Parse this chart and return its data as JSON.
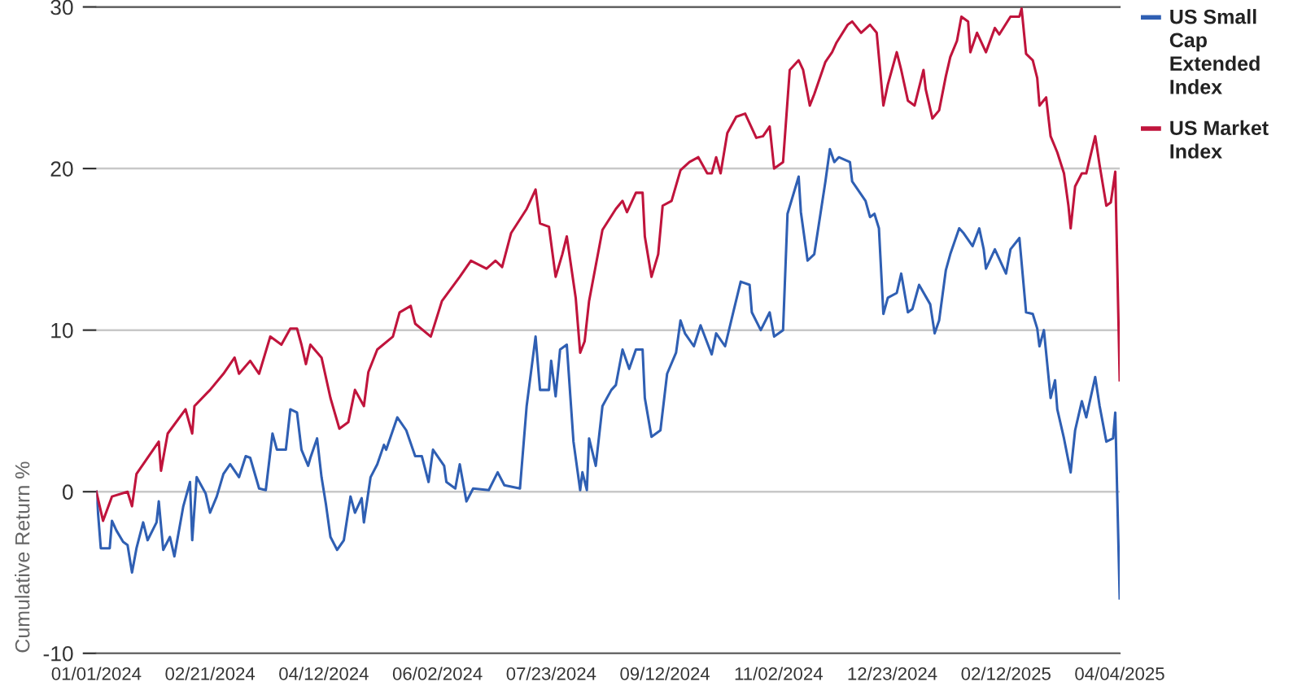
{
  "chart_data": {
    "type": "line",
    "ylabel": "Cumulative Return %",
    "xlim": [
      "2024-01-01",
      "2025-04-04"
    ],
    "xticks": [
      {
        "value": "2024-01-01",
        "label": "01/01/2024"
      },
      {
        "value": "2024-02-21",
        "label": "02/21/2024"
      },
      {
        "value": "2024-04-12",
        "label": "04/12/2024"
      },
      {
        "value": "2024-06-02",
        "label": "06/02/2024"
      },
      {
        "value": "2024-07-23",
        "label": "07/23/2024"
      },
      {
        "value": "2024-09-12",
        "label": "09/12/2024"
      },
      {
        "value": "2024-11-02",
        "label": "11/02/2024"
      },
      {
        "value": "2024-12-23",
        "label": "12/23/2024"
      },
      {
        "value": "2025-02-12",
        "label": "02/12/2025"
      },
      {
        "value": "2025-04-04",
        "label": "04/04/2025"
      }
    ],
    "ylim": [
      -10,
      30
    ],
    "yticks": [
      -10,
      0,
      10,
      20,
      30
    ],
    "grid": "y",
    "legend": "top right",
    "marker": "none",
    "line_style": "solid",
    "series": [
      {
        "name": "US Small Cap Extended Index",
        "color": "#2f5fb3",
        "x": [
          "2024-01-01",
          "2024-01-03",
          "2024-01-07",
          "2024-01-08",
          "2024-01-10",
          "2024-01-13",
          "2024-01-15",
          "2024-01-17",
          "2024-01-19",
          "2024-01-22",
          "2024-01-24",
          "2024-01-28",
          "2024-01-29",
          "2024-01-31",
          "2024-02-03",
          "2024-02-05",
          "2024-02-09",
          "2024-02-12",
          "2024-02-13",
          "2024-02-15",
          "2024-02-19",
          "2024-02-21",
          "2024-02-24",
          "2024-02-27",
          "2024-03-01",
          "2024-03-05",
          "2024-03-08",
          "2024-03-10",
          "2024-03-14",
          "2024-03-17",
          "2024-03-20",
          "2024-03-22",
          "2024-03-26",
          "2024-03-28",
          "2024-03-31",
          "2024-04-02",
          "2024-04-05",
          "2024-04-06",
          "2024-04-09",
          "2024-04-11",
          "2024-04-13",
          "2024-04-15",
          "2024-04-18",
          "2024-04-21",
          "2024-04-24",
          "2024-04-26",
          "2024-04-29",
          "2024-04-30",
          "2024-05-03",
          "2024-05-06",
          "2024-05-09",
          "2024-05-10",
          "2024-05-15",
          "2024-05-19",
          "2024-05-23",
          "2024-05-26",
          "2024-05-29",
          "2024-05-31",
          "2024-06-05",
          "2024-06-06",
          "2024-06-10",
          "2024-06-12",
          "2024-06-15",
          "2024-06-18",
          "2024-06-25",
          "2024-06-29",
          "2024-07-02",
          "2024-07-09",
          "2024-07-12",
          "2024-07-16",
          "2024-07-18",
          "2024-07-22",
          "2024-07-23",
          "2024-07-25",
          "2024-07-27",
          "2024-07-30",
          "2024-08-02",
          "2024-08-05",
          "2024-08-06",
          "2024-08-08",
          "2024-08-09",
          "2024-08-12",
          "2024-08-15",
          "2024-08-19",
          "2024-08-21",
          "2024-08-24",
          "2024-08-27",
          "2024-08-30",
          "2024-09-02",
          "2024-09-03",
          "2024-09-06",
          "2024-09-10",
          "2024-09-13",
          "2024-09-17",
          "2024-09-19",
          "2024-09-21",
          "2024-09-25",
          "2024-09-28",
          "2024-10-03",
          "2024-10-05",
          "2024-10-09",
          "2024-10-13",
          "2024-10-16",
          "2024-10-20",
          "2024-10-21",
          "2024-10-25",
          "2024-10-29",
          "2024-10-31",
          "2024-11-04",
          "2024-11-06",
          "2024-11-11",
          "2024-11-12",
          "2024-11-15",
          "2024-11-18",
          "2024-11-23",
          "2024-11-25",
          "2024-11-27",
          "2024-11-29",
          "2024-12-04",
          "2024-12-05",
          "2024-12-09",
          "2024-12-11",
          "2024-12-13",
          "2024-12-15",
          "2024-12-17",
          "2024-12-19",
          "2024-12-21",
          "2024-12-25",
          "2024-12-27",
          "2024-12-30",
          "2025-01-01",
          "2025-01-04",
          "2025-01-09",
          "2025-01-11",
          "2025-01-13",
          "2025-01-16",
          "2025-01-18",
          "2025-01-22",
          "2025-01-24",
          "2025-01-28",
          "2025-01-31",
          "2025-02-02",
          "2025-02-03",
          "2025-02-07",
          "2025-02-12",
          "2025-02-14",
          "2025-02-18",
          "2025-02-21",
          "2025-02-24",
          "2025-02-26",
          "2025-02-27",
          "2025-03-01",
          "2025-03-04",
          "2025-03-06",
          "2025-03-07",
          "2025-03-10",
          "2025-03-13",
          "2025-03-15",
          "2025-03-18",
          "2025-03-20",
          "2025-03-24",
          "2025-03-26",
          "2025-03-29",
          "2025-04-01",
          "2025-04-02",
          "2025-04-04"
        ],
        "values": [
          0,
          -3.5,
          -3.5,
          -1.8,
          -2.4,
          -3.1,
          -3.3,
          -5.0,
          -3.5,
          -1.9,
          -3.0,
          -1.9,
          -0.6,
          -3.6,
          -2.8,
          -4.0,
          -0.9,
          0.6,
          -3.0,
          0.9,
          -0.1,
          -1.3,
          -0.3,
          1.1,
          1.7,
          0.9,
          2.2,
          2.1,
          0.2,
          0.1,
          3.6,
          2.6,
          2.6,
          5.1,
          4.9,
          2.6,
          1.6,
          2.1,
          3.3,
          0.9,
          -0.8,
          -2.8,
          -3.6,
          -3.0,
          -0.3,
          -1.3,
          -0.4,
          -1.9,
          0.9,
          1.7,
          2.9,
          2.6,
          4.6,
          3.8,
          2.2,
          2.2,
          0.6,
          2.6,
          1.6,
          0.6,
          0.2,
          1.7,
          -0.6,
          0.2,
          0.1,
          1.2,
          0.4,
          0.2,
          5.3,
          9.6,
          6.3,
          6.3,
          8.1,
          5.9,
          8.8,
          9.1,
          3.1,
          0.1,
          1.2,
          0.1,
          3.3,
          1.6,
          5.3,
          6.3,
          6.6,
          8.8,
          7.6,
          8.8,
          8.8,
          5.8,
          3.4,
          3.8,
          7.3,
          8.6,
          10.6,
          9.8,
          9.0,
          10.3,
          8.5,
          9.8,
          9.0,
          11.3,
          13.0,
          12.8,
          11.1,
          10.0,
          11.1,
          9.6,
          10.0,
          17.2,
          19.5,
          17.3,
          14.3,
          14.7,
          19.2,
          21.2,
          20.4,
          20.7,
          20.4,
          19.2,
          18.4,
          18.0,
          17.0,
          17.2,
          16.3,
          11.0,
          12.0,
          12.3,
          13.5,
          11.1,
          11.3,
          12.8,
          11.6,
          9.8,
          10.6,
          13.7,
          14.7,
          16.3,
          16.0,
          15.2,
          16.3,
          15.0,
          13.8,
          15.0,
          13.5,
          15.0,
          15.7,
          11.1,
          11.0,
          10.1,
          9.0,
          10.0,
          5.8,
          6.9,
          5.1,
          3.3,
          1.2,
          3.8,
          5.6,
          4.6,
          7.1,
          5.3,
          3.1,
          3.3,
          4.9,
          -6.6
        ]
      },
      {
        "name": "US Market Index",
        "color": "#c0143c",
        "x": [
          "2024-01-01",
          "2024-01-04",
          "2024-01-08",
          "2024-01-15",
          "2024-01-17",
          "2024-01-19",
          "2024-01-29",
          "2024-01-30",
          "2024-02-02",
          "2024-02-10",
          "2024-02-13",
          "2024-02-14",
          "2024-02-21",
          "2024-02-27",
          "2024-03-03",
          "2024-03-05",
          "2024-03-10",
          "2024-03-14",
          "2024-03-19",
          "2024-03-24",
          "2024-03-28",
          "2024-03-31",
          "2024-04-02",
          "2024-04-04",
          "2024-04-06",
          "2024-04-11",
          "2024-04-15",
          "2024-04-19",
          "2024-04-23",
          "2024-04-26",
          "2024-04-30",
          "2024-05-02",
          "2024-05-06",
          "2024-05-13",
          "2024-05-16",
          "2024-05-21",
          "2024-05-23",
          "2024-05-30",
          "2024-06-04",
          "2024-06-12",
          "2024-06-17",
          "2024-06-24",
          "2024-06-28",
          "2024-07-01",
          "2024-07-05",
          "2024-07-12",
          "2024-07-16",
          "2024-07-18",
          "2024-07-22",
          "2024-07-25",
          "2024-07-28",
          "2024-07-30",
          "2024-08-03",
          "2024-08-05",
          "2024-08-07",
          "2024-08-09",
          "2024-08-15",
          "2024-08-21",
          "2024-08-24",
          "2024-08-26",
          "2024-08-30",
          "2024-09-02",
          "2024-09-03",
          "2024-09-06",
          "2024-09-09",
          "2024-09-11",
          "2024-09-15",
          "2024-09-19",
          "2024-09-23",
          "2024-09-27",
          "2024-10-01",
          "2024-10-03",
          "2024-10-05",
          "2024-10-07",
          "2024-10-10",
          "2024-10-14",
          "2024-10-18",
          "2024-10-23",
          "2024-10-26",
          "2024-10-29",
          "2024-10-31",
          "2024-11-04",
          "2024-11-07",
          "2024-11-11",
          "2024-11-13",
          "2024-11-16",
          "2024-11-18",
          "2024-11-23",
          "2024-11-26",
          "2024-11-28",
          "2024-12-03",
          "2024-12-05",
          "2024-12-09",
          "2024-12-13",
          "2024-12-16",
          "2024-12-19",
          "2024-12-21",
          "2024-12-25",
          "2024-12-27",
          "2024-12-30",
          "2025-01-02",
          "2025-01-06",
          "2025-01-07",
          "2025-01-10",
          "2025-01-13",
          "2025-01-16",
          "2025-01-18",
          "2025-01-21",
          "2025-01-23",
          "2025-01-26",
          "2025-01-27",
          "2025-01-30",
          "2025-02-03",
          "2025-02-07",
          "2025-02-09",
          "2025-02-14",
          "2025-02-18",
          "2025-02-19",
          "2025-02-21",
          "2025-02-24",
          "2025-02-26",
          "2025-02-27",
          "2025-03-02",
          "2025-03-04",
          "2025-03-07",
          "2025-03-10",
          "2025-03-12",
          "2025-03-13",
          "2025-03-15",
          "2025-03-18",
          "2025-03-20",
          "2025-03-24",
          "2025-03-26",
          "2025-03-29",
          "2025-03-31",
          "2025-04-02",
          "2025-04-04"
        ],
        "values": [
          0,
          -1.8,
          -0.3,
          0,
          -0.9,
          1.1,
          3.1,
          1.3,
          3.6,
          5.1,
          3.6,
          5.3,
          6.3,
          7.3,
          8.3,
          7.3,
          8.1,
          7.3,
          9.6,
          9.1,
          10.1,
          10.1,
          9.1,
          7.9,
          9.1,
          8.3,
          5.8,
          3.9,
          4.3,
          6.3,
          5.3,
          7.4,
          8.8,
          9.6,
          11.1,
          11.5,
          10.4,
          9.6,
          11.8,
          13.3,
          14.3,
          13.8,
          14.3,
          13.9,
          16.0,
          17.5,
          18.7,
          16.6,
          16.4,
          13.3,
          14.7,
          15.8,
          12.0,
          8.6,
          9.3,
          11.8,
          16.2,
          17.5,
          18.0,
          17.3,
          18.5,
          18.5,
          15.8,
          13.3,
          14.7,
          17.7,
          18.0,
          19.9,
          20.4,
          20.7,
          19.7,
          19.7,
          20.7,
          19.7,
          22.2,
          23.2,
          23.4,
          21.9,
          22.0,
          22.6,
          20.0,
          20.4,
          26.1,
          26.7,
          26.1,
          23.9,
          24.6,
          26.6,
          27.2,
          27.8,
          28.9,
          29.1,
          28.4,
          28.9,
          28.4,
          23.9,
          25.2,
          27.2,
          26.1,
          24.2,
          23.9,
          26.1,
          24.9,
          23.1,
          23.6,
          25.7,
          26.9,
          27.9,
          29.4,
          29.1,
          27.2,
          28.4,
          27.2,
          28.7,
          28.3,
          29.4,
          29.4,
          29.9,
          27.1,
          26.7,
          25.6,
          23.9,
          24.4,
          22.0,
          21.0,
          19.7,
          17.7,
          16.3,
          18.9,
          19.7,
          19.7,
          22.0,
          20.2,
          17.7,
          17.9,
          19.8,
          6.9
        ]
      }
    ]
  }
}
